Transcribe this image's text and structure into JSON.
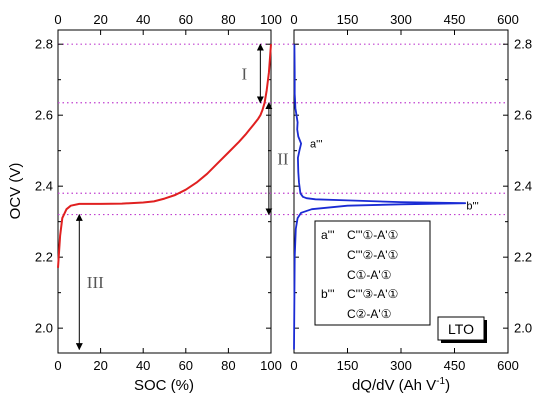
{
  "chart_data": [
    {
      "type": "line",
      "panel": "left",
      "xlabel": "SOC (%)",
      "ylabel": "OCV (V)",
      "xlim": [
        0,
        100
      ],
      "ylim": [
        1.93,
        2.84
      ],
      "x_ticks": [
        0,
        20,
        40,
        60,
        80,
        100
      ],
      "y_ticks": [
        2.0,
        2.2,
        2.4,
        2.6,
        2.8
      ],
      "series": [
        {
          "color": "#e02020",
          "points": [
            [
              0,
              2.17
            ],
            [
              1,
              2.26
            ],
            [
              2,
              2.31
            ],
            [
              4,
              2.335
            ],
            [
              6,
              2.345
            ],
            [
              10,
              2.35
            ],
            [
              20,
              2.35
            ],
            [
              30,
              2.351
            ],
            [
              40,
              2.354
            ],
            [
              45,
              2.357
            ],
            [
              50,
              2.365
            ],
            [
              55,
              2.375
            ],
            [
              60,
              2.39
            ],
            [
              65,
              2.41
            ],
            [
              70,
              2.435
            ],
            [
              75,
              2.465
            ],
            [
              80,
              2.495
            ],
            [
              85,
              2.525
            ],
            [
              88,
              2.545
            ],
            [
              90,
              2.56
            ],
            [
              92,
              2.575
            ],
            [
              94,
              2.59
            ],
            [
              95,
              2.6
            ],
            [
              96,
              2.615
            ],
            [
              97,
              2.635
            ],
            [
              98,
              2.67
            ],
            [
              99,
              2.72
            ],
            [
              100,
              2.8
            ]
          ]
        }
      ],
      "dotted_levels": [
        2.8,
        2.635,
        2.38,
        2.32
      ],
      "annotations": [
        {
          "text": "I",
          "v_from": 2.635,
          "v_to": 2.8,
          "soc": 95
        },
        {
          "text": "II",
          "v_from": 2.32,
          "v_to": 2.635,
          "soc": 99
        },
        {
          "text": "III",
          "v_from": 1.94,
          "v_to": 2.32,
          "soc": 10
        }
      ]
    },
    {
      "type": "line",
      "panel": "right",
      "xlabel": "dQ/dV (Ah V",
      "xlabel_superscript": "-1",
      "xlabel_suffix": ")",
      "xlim": [
        0,
        600
      ],
      "ylim": [
        1.93,
        2.84
      ],
      "x_ticks": [
        0,
        150,
        300,
        450,
        600
      ],
      "y_ticks": [
        2.0,
        2.2,
        2.4,
        2.6,
        2.8
      ],
      "series": [
        {
          "color": "#1a2bd4",
          "points": [
            [
              0,
              1.94
            ],
            [
              2,
              2.2
            ],
            [
              5,
              2.28
            ],
            [
              10,
              2.31
            ],
            [
              20,
              2.325
            ],
            [
              50,
              2.335
            ],
            [
              150,
              2.345
            ],
            [
              300,
              2.349
            ],
            [
              480,
              2.352
            ],
            [
              300,
              2.355
            ],
            [
              150,
              2.36
            ],
            [
              60,
              2.363
            ],
            [
              35,
              2.366
            ],
            [
              25,
              2.37
            ],
            [
              18,
              2.38
            ],
            [
              14,
              2.41
            ],
            [
              12,
              2.44
            ],
            [
              11,
              2.48
            ],
            [
              15,
              2.5
            ],
            [
              20,
              2.52
            ],
            [
              12,
              2.54
            ],
            [
              9,
              2.56
            ],
            [
              10,
              2.58
            ],
            [
              7,
              2.6
            ],
            [
              4,
              2.62
            ],
            [
              3,
              2.64
            ],
            [
              2,
              2.66
            ],
            [
              2,
              2.72
            ],
            [
              1,
              2.8
            ]
          ]
        }
      ],
      "peak_labels": [
        {
          "text": "a'''",
          "q": 45,
          "v": 2.52
        },
        {
          "text": "b'''",
          "q": 500,
          "v": 2.345
        }
      ]
    }
  ],
  "legend": {
    "rows": [
      {
        "tag": "a'''",
        "text": "C'''①-A'①"
      },
      {
        "tag": "",
        "text": "C'''②-A'①"
      },
      {
        "tag": "",
        "text": "C①-A'①"
      },
      {
        "tag": "b'''",
        "text": "C'''③-A'①"
      },
      {
        "tag": "",
        "text": "C②-A'①"
      }
    ]
  },
  "badge": "LTO",
  "colors": {
    "ocv_curve": "#e02020",
    "dqdv_curve": "#1a2bd4",
    "dotted_lines": "#c040d0",
    "arrows": "#000000"
  }
}
